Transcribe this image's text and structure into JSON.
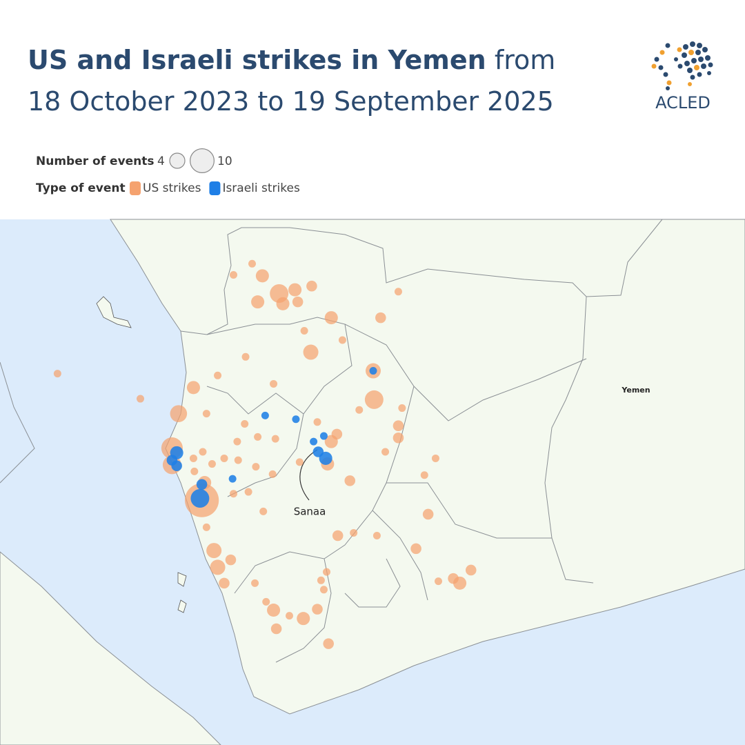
{
  "header": {
    "title_bold": "US and Israeli strikes in Yemen",
    "title_rest": "from",
    "title_line2": "18 October 2023 to 19 September 2025",
    "logo": "ACLED"
  },
  "legend": {
    "size_title": "Number of events",
    "size_min": 4,
    "size_max": 10,
    "type_title": "Type of event"
  },
  "map": {
    "labels": [
      "Yemen",
      "Sanaa"
    ],
    "series": [
      {
        "name": "US strikes",
        "color": "#f5a26f",
        "points": [
          [
            43.51,
            17.37,
            1
          ],
          [
            43.62,
            17.24,
            3
          ],
          [
            43.8,
            17.05,
            6
          ],
          [
            43.97,
            17.09,
            3
          ],
          [
            44.15,
            17.13,
            2
          ],
          [
            43.57,
            16.96,
            3
          ],
          [
            43.84,
            16.94,
            3
          ],
          [
            44.0,
            16.96,
            2
          ],
          [
            44.36,
            16.79,
            3
          ],
          [
            44.89,
            16.79,
            2
          ],
          [
            45.08,
            17.07,
            1
          ],
          [
            43.31,
            17.25,
            1
          ],
          [
            44.07,
            16.65,
            1
          ],
          [
            44.48,
            16.55,
            1
          ],
          [
            44.14,
            16.42,
            4
          ],
          [
            43.44,
            16.37,
            1
          ],
          [
            44.81,
            16.22,
            4
          ],
          [
            44.82,
            15.91,
            6
          ],
          [
            44.66,
            15.8,
            1
          ],
          [
            45.12,
            15.82,
            1
          ],
          [
            45.08,
            15.63,
            2
          ],
          [
            45.08,
            15.5,
            2
          ],
          [
            44.94,
            15.35,
            1
          ],
          [
            45.48,
            15.28,
            1
          ],
          [
            41.42,
            16.19,
            1
          ],
          [
            42.31,
            15.92,
            1
          ],
          [
            42.88,
            16.04,
            3
          ],
          [
            43.14,
            16.17,
            1
          ],
          [
            42.72,
            15.76,
            5
          ],
          [
            43.02,
            15.76,
            1
          ],
          [
            43.74,
            16.08,
            1
          ],
          [
            43.43,
            15.65,
            1
          ],
          [
            43.57,
            15.51,
            1
          ],
          [
            43.76,
            15.49,
            1
          ],
          [
            43.35,
            15.46,
            1
          ],
          [
            44.42,
            15.54,
            2
          ],
          [
            44.36,
            15.46,
            3
          ],
          [
            44.21,
            15.67,
            1
          ],
          [
            44.02,
            15.24,
            1
          ],
          [
            44.32,
            15.22,
            3
          ],
          [
            44.56,
            15.04,
            2
          ],
          [
            42.65,
            15.39,
            8
          ],
          [
            42.65,
            15.21,
            6
          ],
          [
            42.88,
            15.28,
            1
          ],
          [
            42.98,
            15.35,
            1
          ],
          [
            43.08,
            15.22,
            1
          ],
          [
            43.21,
            15.28,
            1
          ],
          [
            43.36,
            15.26,
            1
          ],
          [
            43.55,
            15.19,
            1
          ],
          [
            43.0,
            15.02,
            3
          ],
          [
            42.97,
            14.83,
            20
          ],
          [
            42.89,
            15.14,
            1
          ],
          [
            43.31,
            14.9,
            1
          ],
          [
            43.47,
            14.92,
            1
          ],
          [
            43.73,
            15.11,
            1
          ],
          [
            43.63,
            14.71,
            1
          ],
          [
            43.02,
            14.54,
            1
          ],
          [
            43.1,
            14.29,
            4
          ],
          [
            43.28,
            14.19,
            2
          ],
          [
            43.14,
            14.11,
            4
          ],
          [
            43.21,
            13.94,
            2
          ],
          [
            43.54,
            13.94,
            1
          ],
          [
            44.25,
            13.97,
            1
          ],
          [
            44.31,
            14.06,
            1
          ],
          [
            44.43,
            14.45,
            2
          ],
          [
            44.6,
            14.48,
            1
          ],
          [
            44.85,
            14.45,
            1
          ],
          [
            45.4,
            14.68,
            2
          ],
          [
            45.27,
            14.31,
            2
          ],
          [
            45.36,
            15.1,
            1
          ],
          [
            45.86,
            14.08,
            2
          ],
          [
            45.67,
            13.99,
            2
          ],
          [
            45.74,
            13.94,
            3
          ],
          [
            45.51,
            13.96,
            1
          ],
          [
            43.74,
            13.65,
            3
          ],
          [
            43.66,
            13.74,
            1
          ],
          [
            43.77,
            13.45,
            2
          ],
          [
            43.91,
            13.59,
            1
          ],
          [
            44.06,
            13.56,
            3
          ],
          [
            44.21,
            13.66,
            2
          ],
          [
            44.33,
            13.29,
            2
          ],
          [
            44.28,
            13.87,
            1
          ]
        ]
      },
      {
        "name": "Israeli strikes",
        "color": "#1f7fe6",
        "points": [
          [
            44.81,
            16.22,
            1
          ],
          [
            43.65,
            15.74,
            1
          ],
          [
            43.98,
            15.7,
            1
          ],
          [
            42.7,
            15.34,
            3
          ],
          [
            42.65,
            15.26,
            2
          ],
          [
            42.7,
            15.2,
            2
          ],
          [
            42.97,
            15.0,
            2
          ],
          [
            42.95,
            14.85,
            6
          ],
          [
            43.3,
            15.06,
            1
          ],
          [
            44.17,
            15.46,
            1
          ],
          [
            44.28,
            15.52,
            1
          ],
          [
            44.22,
            15.35,
            2
          ],
          [
            44.3,
            15.28,
            3
          ]
        ]
      }
    ]
  }
}
